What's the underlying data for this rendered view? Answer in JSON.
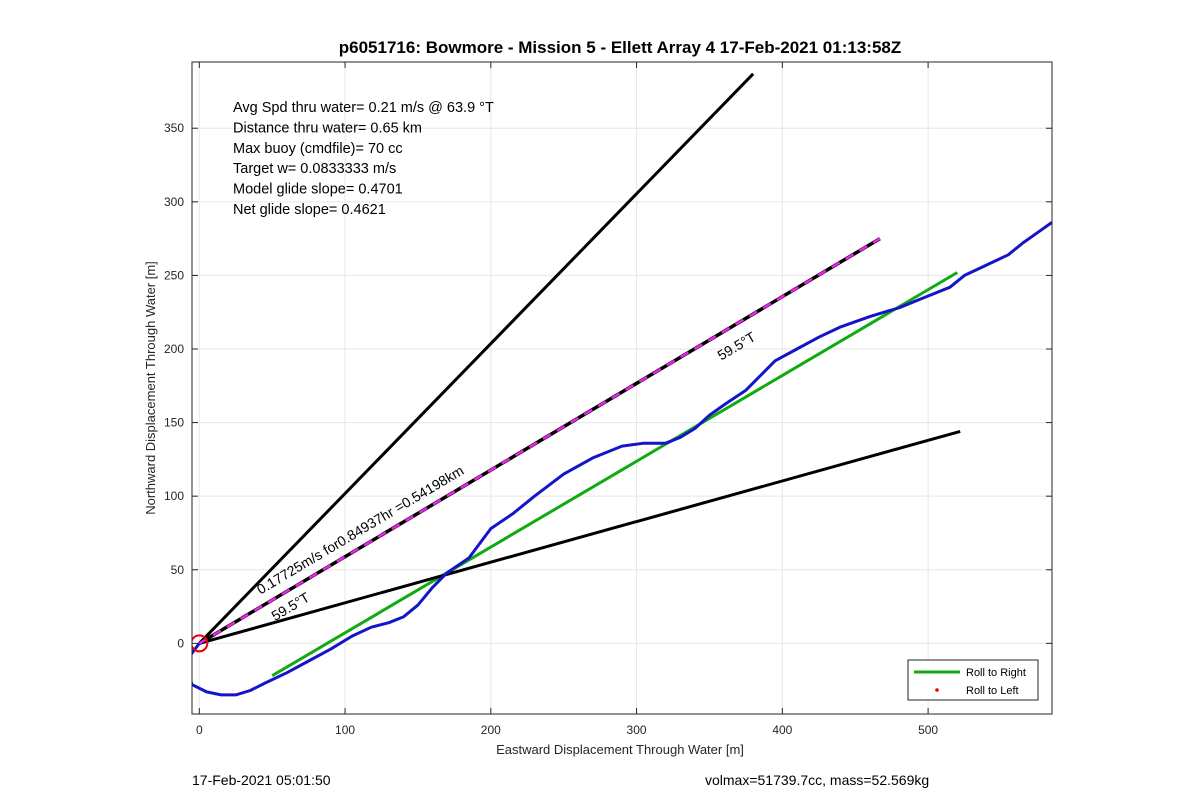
{
  "chart_data": {
    "type": "line",
    "title": "p6051716: Bowmore - Mission 5 - Ellett Array 4 17-Feb-2021 01:13:58Z",
    "xlabel": "Eastward Displacement Through Water [m]",
    "ylabel": "Northward Displacement Through Water [m]",
    "xlim": [
      -5,
      585
    ],
    "ylim": [
      -48,
      395
    ],
    "xticks": [
      0,
      100,
      200,
      300,
      400,
      500
    ],
    "yticks": [
      0,
      50,
      100,
      150,
      200,
      250,
      300,
      350
    ],
    "grid": true,
    "annotations": [
      "Avg Spd thru water=  0.21 m/s @  63.9 °T",
      "Distance thru water=  0.65 km",
      "Max buoy (cmdfile)= 70 cc",
      "Target w= 0.0833333 m/s",
      "Model glide slope= 0.4701",
      "Net glide slope= 0.4621"
    ],
    "line_labels": {
      "current": "0.17725m/s for0.84937hr =0.54198km",
      "heading_upper": "59.5°T",
      "heading_lower": "59.5°T"
    },
    "legend": {
      "position": "bottom-right",
      "entries": [
        {
          "name": "Roll to Right",
          "color": "#11aa11",
          "style": "line"
        },
        {
          "name": "Roll to Left",
          "color": "#ee0000",
          "style": "marker"
        }
      ]
    },
    "series": [
      {
        "name": "Roll to Right",
        "color": "#11aa11",
        "x": [
          50,
          520
        ],
        "y": [
          -22,
          252
        ]
      },
      {
        "color": "#000000",
        "x": [
          0,
          380
        ],
        "y": [
          0,
          387
        ]
      },
      {
        "color": "#000000",
        "x": [
          0,
          522
        ],
        "y": [
          0,
          144
        ]
      },
      {
        "color": "#000000",
        "dashed_color": "#ee22ee",
        "x": [
          0,
          467
        ],
        "y": [
          0,
          275
        ]
      },
      {
        "color": "#1515c8",
        "x": [
          0,
          -6,
          -8,
          -5,
          5,
          15,
          25,
          35,
          45,
          60,
          75,
          90,
          105,
          118,
          130,
          140,
          150,
          160,
          170,
          185,
          200,
          215,
          230,
          250,
          270,
          290,
          305,
          320,
          330,
          340,
          350,
          360,
          375,
          385,
          395,
          410,
          425,
          440,
          460,
          480,
          500,
          515,
          525,
          540,
          555,
          565,
          575,
          585
        ],
        "y": [
          0,
          -8,
          -18,
          -28,
          -33,
          -35,
          -35,
          -32,
          -27,
          -20,
          -12,
          -4,
          5,
          11,
          14,
          18,
          26,
          38,
          48,
          58,
          78,
          88,
          100,
          115,
          126,
          134,
          136,
          136,
          140,
          146,
          155,
          162,
          172,
          182,
          192,
          200,
          208,
          215,
          222,
          228,
          236,
          242,
          250,
          257,
          264,
          272,
          279,
          286
        ]
      },
      {
        "name": "Roll to Left",
        "color": "#ee0000",
        "style": "circle",
        "x": [
          0
        ],
        "y": [
          0
        ]
      }
    ]
  },
  "footer": {
    "left": "17-Feb-2021 05:01:50",
    "right": "volmax=51739.7cc, mass=52.569kg"
  }
}
